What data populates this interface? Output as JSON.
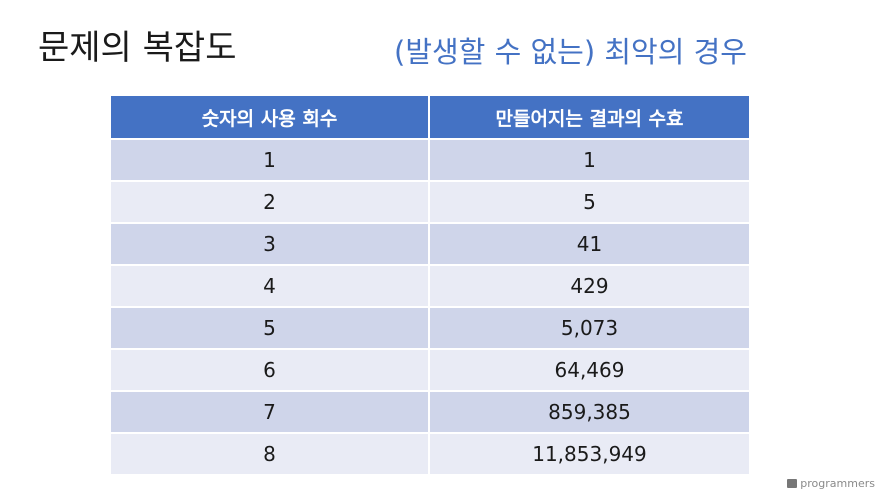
{
  "title": "문제의 복잡도",
  "subtitle": "(발생할 수 없는) 최악의 경우",
  "table": {
    "headers": [
      "숫자의 사용 회수",
      "만들어지는 결과의 수효"
    ],
    "rows": [
      [
        "1",
        "1"
      ],
      [
        "2",
        "5"
      ],
      [
        "3",
        "41"
      ],
      [
        "4",
        "429"
      ],
      [
        "5",
        "5,073"
      ],
      [
        "6",
        "64,469"
      ],
      [
        "7",
        "859,385"
      ],
      [
        "8",
        "11,853,949"
      ]
    ]
  },
  "watermark": {
    "text": "programmers",
    "icon": "programmers-logo-icon"
  },
  "colors": {
    "header_bg": "#4472c4",
    "row_odd": "#cfd5ea",
    "row_even": "#e9ebf5",
    "subtitle": "#4472c4"
  }
}
